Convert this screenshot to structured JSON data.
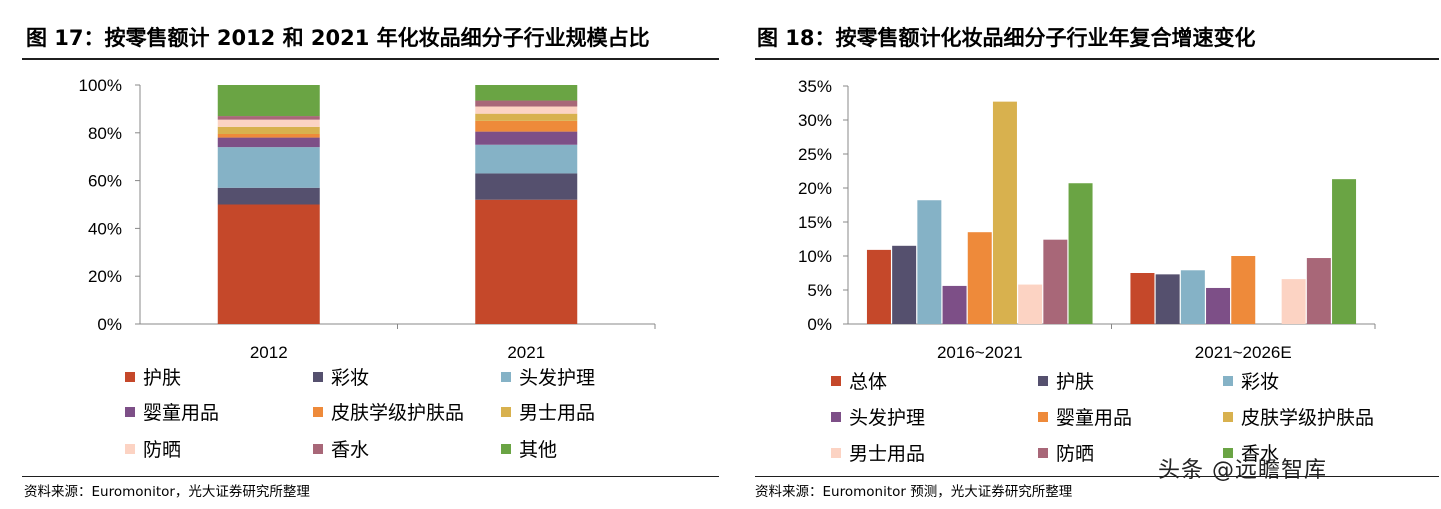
{
  "left": {
    "title": "图 17：按零售额计 2012 和 2021 年化妆品细分子行业规模占比",
    "source": "资料来源：Euromonitor，光大证券研究所整理"
  },
  "right": {
    "title": "图 18：按零售额计化妆品细分子行业年复合增速变化",
    "source": "资料来源：Euromonitor 预测，光大证券研究所整理"
  },
  "watermark": "头条 @远瞻智库",
  "colors": {
    "护肤": "#c5482a",
    "彩妆": "#55506e",
    "头发护理": "#85b2c6",
    "婴童用品": "#7d4f87",
    "皮肤学级护肤品": "#ee8a3a",
    "男士用品": "#d8b14e",
    "防晒": "#fcd3c3",
    "香水": "#a86778",
    "其他": "#6aa444",
    "总体": "#c5482a",
    "护肤_r": "#55506e",
    "彩妆_r": "#85b2c6",
    "头发护理_r": "#7d4f87",
    "婴童用品_r": "#ee8a3a",
    "皮肤学级护肤品_r": "#d8b14e",
    "男士用品_r": "#fcd3c3",
    "防晒_r": "#a86778",
    "香水_r": "#6aa444"
  },
  "chart_data": [
    {
      "type": "bar",
      "stacked": true,
      "categories": [
        "2012",
        "2021"
      ],
      "series": [
        {
          "name": "护肤",
          "values": [
            50,
            52
          ]
        },
        {
          "name": "彩妆",
          "values": [
            7,
            11
          ]
        },
        {
          "name": "头发护理",
          "values": [
            17,
            12
          ]
        },
        {
          "name": "婴童用品",
          "values": [
            4,
            5.5
          ]
        },
        {
          "name": "皮肤学级护肤品",
          "values": [
            1.5,
            4.5
          ]
        },
        {
          "name": "男士用品",
          "values": [
            3,
            3
          ]
        },
        {
          "name": "防晒",
          "values": [
            3,
            3
          ]
        },
        {
          "name": "香水",
          "values": [
            1.5,
            2.5
          ]
        },
        {
          "name": "其他",
          "values": [
            13,
            6.5
          ]
        }
      ],
      "ylim": [
        0,
        100
      ],
      "yticks": [
        "0%",
        "20%",
        "40%",
        "60%",
        "80%",
        "100%"
      ],
      "legend": [
        "护肤",
        "彩妆",
        "头发护理",
        "婴童用品",
        "皮肤学级护肤品",
        "男士用品",
        "防晒",
        "香水",
        "其他"
      ]
    },
    {
      "type": "bar",
      "stacked": false,
      "categories": [
        "2016~2021",
        "2021~2026E"
      ],
      "series": [
        {
          "name": "总体",
          "values": [
            10.9,
            7.5
          ]
        },
        {
          "name": "护肤",
          "values": [
            11.5,
            7.3
          ]
        },
        {
          "name": "彩妆",
          "values": [
            18.2,
            7.9
          ]
        },
        {
          "name": "头发护理",
          "values": [
            5.6,
            5.3
          ]
        },
        {
          "name": "婴童用品",
          "values": [
            13.5,
            10.0
          ]
        },
        {
          "name": "皮肤学级护肤品",
          "values": [
            32.7,
            0
          ]
        },
        {
          "name": "男士用品",
          "values": [
            5.8,
            6.6
          ]
        },
        {
          "name": "防晒",
          "values": [
            12.4,
            9.7
          ]
        },
        {
          "name": "香水",
          "values": [
            20.7,
            21.3
          ]
        }
      ],
      "ylim": [
        0,
        35
      ],
      "yticks": [
        "0%",
        "5%",
        "10%",
        "15%",
        "20%",
        "25%",
        "30%",
        "35%"
      ],
      "legend": [
        "总体",
        "护肤",
        "彩妆",
        "头发护理",
        "婴童用品",
        "皮肤学级护肤品",
        "男士用品",
        "防晒",
        "香水"
      ]
    }
  ]
}
